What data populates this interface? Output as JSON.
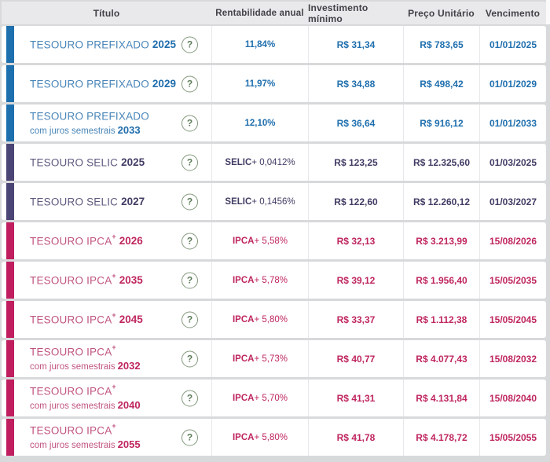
{
  "help_icon_glyph": "?",
  "colors": {
    "blue_bar": "#1e6fad",
    "blue_title": "#4a86b8",
    "blue_strong": "#1f6dad",
    "purple_bar": "#4a4574",
    "purple_title": "#5f5a80",
    "purple_strong": "#413c64",
    "pink_bar": "#c01e5f",
    "pink_title": "#c05480",
    "pink_strong": "#bf265f",
    "header_bg": "#e9e9ec",
    "page_bg": "#d8d9db",
    "help_icon_green": "#5d7d5a"
  },
  "table": {
    "columns": [
      {
        "label": "Título"
      },
      {
        "label": "Rentabilidade anual"
      },
      {
        "label": "Investimento mínimo"
      },
      {
        "label": "Preço Unitário"
      },
      {
        "label": "Vencimento"
      }
    ],
    "rows": [
      {
        "theme": "blue",
        "title_main": "TESOURO PREFIXADO",
        "title_sup": "",
        "year_line1": "2025",
        "title_sub": "",
        "year_line2": "",
        "rate_bold": "11,84%",
        "rate_rest": "",
        "min_investment": "R$ 31,34",
        "unit_price": "R$ 783,65",
        "maturity": "01/01/2025"
      },
      {
        "theme": "blue",
        "title_main": "TESOURO PREFIXADO",
        "title_sup": "",
        "year_line1": "2029",
        "title_sub": "",
        "year_line2": "",
        "rate_bold": "11,97%",
        "rate_rest": "",
        "min_investment": "R$ 34,88",
        "unit_price": "R$ 498,42",
        "maturity": "01/01/2029"
      },
      {
        "theme": "blue",
        "title_main": "TESOURO PREFIXADO",
        "title_sup": "",
        "year_line1": "",
        "title_sub": "com juros semestrais",
        "year_line2": "2033",
        "rate_bold": "12,10%",
        "rate_rest": "",
        "min_investment": "R$ 36,64",
        "unit_price": "R$ 916,12",
        "maturity": "01/01/2033"
      },
      {
        "theme": "purple",
        "title_main": "TESOURO SELIC",
        "title_sup": "",
        "year_line1": "2025",
        "title_sub": "",
        "year_line2": "",
        "rate_bold": "SELIC",
        "rate_rest": " + 0,0412%",
        "min_investment": "R$ 123,25",
        "unit_price": "R$ 12.325,60",
        "maturity": "01/03/2025"
      },
      {
        "theme": "purple",
        "title_main": "TESOURO SELIC",
        "title_sup": "",
        "year_line1": "2027",
        "title_sub": "",
        "year_line2": "",
        "rate_bold": "SELIC",
        "rate_rest": " + 0,1456%",
        "min_investment": "R$ 122,60",
        "unit_price": "R$ 12.260,12",
        "maturity": "01/03/2027"
      },
      {
        "theme": "pink",
        "title_main": "TESOURO IPCA",
        "title_sup": "+",
        "year_line1": "2026",
        "title_sub": "",
        "year_line2": "",
        "rate_bold": "IPCA",
        "rate_rest": " + 5,58%",
        "min_investment": "R$ 32,13",
        "unit_price": "R$ 3.213,99",
        "maturity": "15/08/2026"
      },
      {
        "theme": "pink",
        "title_main": "TESOURO IPCA",
        "title_sup": "+",
        "year_line1": "2035",
        "title_sub": "",
        "year_line2": "",
        "rate_bold": "IPCA",
        "rate_rest": " + 5,78%",
        "min_investment": "R$ 39,12",
        "unit_price": "R$ 1.956,40",
        "maturity": "15/05/2035"
      },
      {
        "theme": "pink",
        "title_main": "TESOURO IPCA",
        "title_sup": "+",
        "year_line1": "2045",
        "title_sub": "",
        "year_line2": "",
        "rate_bold": "IPCA",
        "rate_rest": " + 5,80%",
        "min_investment": "R$ 33,37",
        "unit_price": "R$ 1.112,38",
        "maturity": "15/05/2045"
      },
      {
        "theme": "pink",
        "title_main": "TESOURO IPCA",
        "title_sup": "+",
        "year_line1": "",
        "title_sub": "com juros semestrais",
        "year_line2": "2032",
        "rate_bold": "IPCA",
        "rate_rest": " + 5,73%",
        "min_investment": "R$ 40,77",
        "unit_price": "R$ 4.077,43",
        "maturity": "15/08/2032"
      },
      {
        "theme": "pink",
        "title_main": "TESOURO IPCA",
        "title_sup": "+",
        "year_line1": "",
        "title_sub": "com juros semestrais",
        "year_line2": "2040",
        "rate_bold": "IPCA",
        "rate_rest": " + 5,70%",
        "min_investment": "R$ 41,31",
        "unit_price": "R$ 4.131,84",
        "maturity": "15/08/2040"
      },
      {
        "theme": "pink",
        "title_main": "TESOURO IPCA",
        "title_sup": "+",
        "year_line1": "",
        "title_sub": "com juros semestrais",
        "year_line2": "2055",
        "rate_bold": "IPCA",
        "rate_rest": " + 5,80%",
        "min_investment": "R$ 41,78",
        "unit_price": "R$ 4.178,72",
        "maturity": "15/05/2055"
      }
    ]
  }
}
